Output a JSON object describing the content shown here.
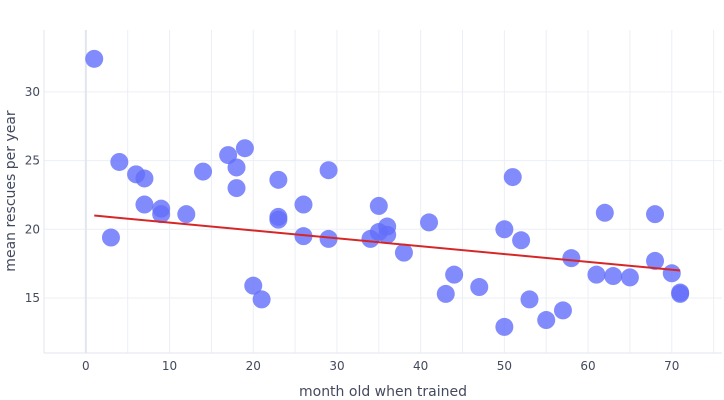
{
  "chart_data": {
    "type": "scatter",
    "title": "",
    "xlabel": "month old when trained",
    "ylabel": "mean rescues per year",
    "xlim": [
      -5,
      76
    ],
    "ylim": [
      11,
      34.5
    ],
    "xticks": [
      0,
      10,
      20,
      30,
      40,
      50,
      60,
      70
    ],
    "yticks": [
      15,
      20,
      25,
      30
    ],
    "grid": true,
    "legend": "none",
    "colors": {
      "points": "#636efa",
      "trend": "#d62728"
    },
    "series": [
      {
        "type": "scatter",
        "x": [
          1,
          3,
          4,
          6,
          7,
          7,
          9,
          9,
          12,
          14,
          17,
          18,
          18,
          19,
          20,
          21,
          23,
          23,
          23,
          26,
          26,
          29,
          29,
          34,
          35,
          35,
          36,
          36,
          38,
          41,
          43,
          44,
          47,
          50,
          50,
          51,
          52,
          53,
          55,
          57,
          58,
          61,
          62,
          63,
          65,
          68,
          68,
          70,
          71,
          71
        ],
        "y": [
          32.4,
          19.4,
          24.9,
          24.0,
          23.7,
          21.8,
          21.5,
          21.1,
          21.1,
          24.2,
          25.4,
          24.5,
          23.0,
          25.9,
          15.9,
          14.9,
          23.6,
          20.9,
          20.7,
          21.8,
          19.5,
          24.3,
          19.3,
          19.3,
          21.7,
          19.8,
          20.2,
          19.6,
          18.3,
          20.5,
          15.3,
          16.7,
          15.8,
          20.0,
          12.9,
          23.8,
          19.2,
          14.9,
          13.4,
          14.1,
          17.9,
          16.7,
          21.2,
          16.6,
          16.5,
          21.1,
          17.7,
          16.8,
          15.4,
          15.3
        ]
      },
      {
        "type": "line",
        "x": [
          1,
          71
        ],
        "y": [
          21.0,
          17.0
        ]
      }
    ]
  }
}
